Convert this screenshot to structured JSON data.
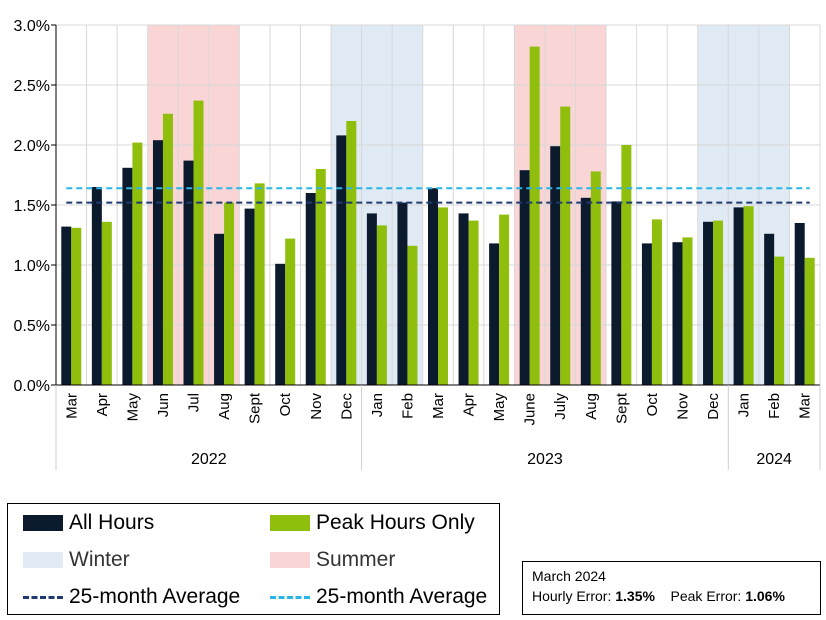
{
  "chart_data": {
    "type": "bar",
    "categories": [
      "Mar",
      "Apr",
      "May",
      "Jun",
      "Jul",
      "Aug",
      "Sept",
      "Oct",
      "Nov",
      "Dec",
      "Jan",
      "Feb",
      "Mar",
      "Apr",
      "May",
      "June",
      "July",
      "Aug",
      "Sept",
      "Oct",
      "Nov",
      "Dec",
      "Jan",
      "Feb",
      "Mar"
    ],
    "series": [
      {
        "name": "All Hours",
        "color": "#0c1a2e",
        "values": [
          1.32,
          1.65,
          1.81,
          2.04,
          1.87,
          1.26,
          1.47,
          1.01,
          1.6,
          2.08,
          1.43,
          1.52,
          1.64,
          1.43,
          1.18,
          1.79,
          1.99,
          1.56,
          1.53,
          1.18,
          1.19,
          1.36,
          1.48,
          1.26,
          1.35
        ]
      },
      {
        "name": "Peak Hours Only",
        "color": "#8fbe0c",
        "values": [
          1.31,
          1.36,
          2.02,
          2.26,
          2.37,
          1.52,
          1.68,
          1.22,
          1.8,
          2.2,
          1.33,
          1.16,
          1.48,
          1.37,
          1.42,
          2.82,
          2.32,
          1.78,
          2.0,
          1.38,
          1.23,
          1.37,
          1.49,
          1.07,
          1.06
        ]
      }
    ],
    "averages": [
      {
        "name": "25-month Average",
        "value": 1.52,
        "color": "#1f3a6e"
      },
      {
        "name": "25-month Average",
        "value": 1.64,
        "color": "#29b6e6"
      }
    ],
    "bands": [
      {
        "type": "summer",
        "color": "#f9d5d5",
        "start": 3,
        "end": 5
      },
      {
        "type": "winter",
        "color": "#dfeaf5",
        "start": 9,
        "end": 11
      },
      {
        "type": "summer",
        "color": "#f9d5d5",
        "start": 15,
        "end": 17
      },
      {
        "type": "winter",
        "color": "#dfeaf5",
        "start": 21,
        "end": 23
      }
    ],
    "year_groups": [
      {
        "label": "2022",
        "start": 0,
        "end": 9
      },
      {
        "label": "2023",
        "start": 10,
        "end": 21
      },
      {
        "label": "2024",
        "start": 22,
        "end": 24
      }
    ],
    "y_ticks": [
      "0.0%",
      "0.5%",
      "1.0%",
      "1.5%",
      "2.0%",
      "2.5%",
      "3.0%"
    ],
    "ylim": [
      0,
      3.0
    ]
  },
  "legend": {
    "all_hours": "All Hours",
    "peak_hours": "Peak Hours Only",
    "winter": "Winter",
    "summer": "Summer",
    "avg_all": "25-month Average",
    "avg_peak": "25-month Average",
    "colors": {
      "all": "#0c1a2e",
      "peak": "#8fbe0c",
      "winter": "#dfeaf5",
      "summer": "#f9d5d5",
      "avg_all": "#1f3a6e",
      "avg_peak": "#29b6e6"
    }
  },
  "note": {
    "title": "March 2024",
    "hourly_label": "Hourly Error:",
    "hourly_value": "1.35%",
    "peak_label": "Peak Error:",
    "peak_value": "1.06%"
  }
}
